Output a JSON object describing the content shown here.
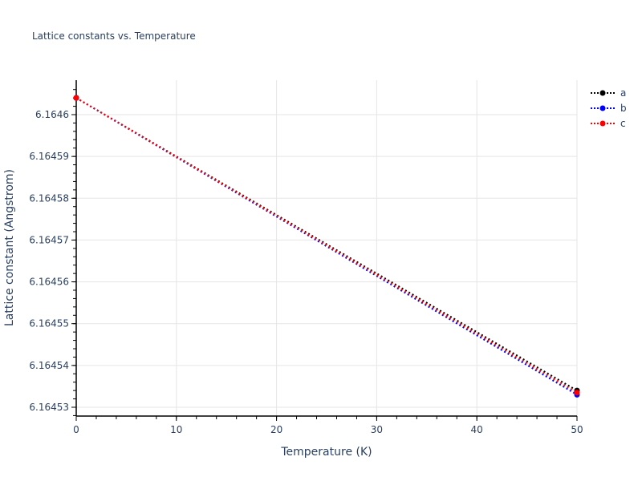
{
  "title": "Lattice constants vs. Temperature",
  "chart_data": {
    "type": "line",
    "title": "Lattice constants vs. Temperature",
    "xlabel": "Temperature (K)",
    "ylabel": "Lattice constant (Angstrom)",
    "xlim": [
      0,
      50
    ],
    "ylim": [
      6.164528,
      6.164608
    ],
    "x_ticks": [
      "0",
      "10",
      "20",
      "30",
      "40",
      "50"
    ],
    "y_ticks": [
      "6.16453",
      "6.16454",
      "6.16455",
      "6.16456",
      "6.16457",
      "6.16458",
      "6.16459",
      "6.1646"
    ],
    "grid": true,
    "legend_position": "top-right",
    "x": [
      0,
      50
    ],
    "series": [
      {
        "name": "a",
        "color": "#000000",
        "line": "dotted",
        "values": [
          6.164604,
          6.164534
        ]
      },
      {
        "name": "b",
        "color": "#0000ff",
        "line": "dotted",
        "values": [
          6.164604,
          6.164533
        ]
      },
      {
        "name": "c",
        "color": "#ff0000",
        "line": "dotted",
        "values": [
          6.164604,
          6.1645335
        ]
      }
    ]
  },
  "legend": [
    {
      "label": "a",
      "color": "#000000"
    },
    {
      "label": "b",
      "color": "#0000ff"
    },
    {
      "label": "c",
      "color": "#ff0000"
    }
  ]
}
